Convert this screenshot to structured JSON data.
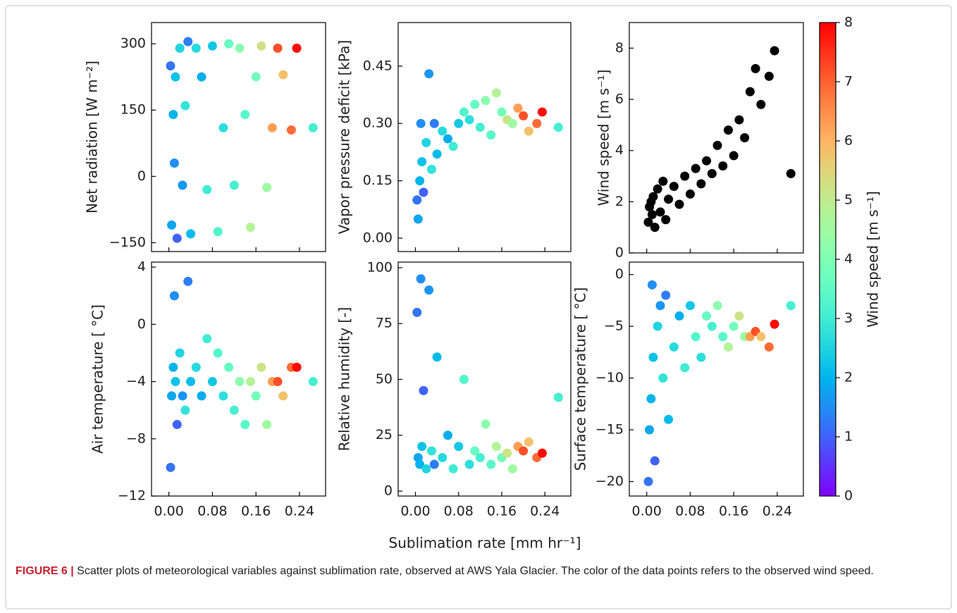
{
  "chart_data": [
    {
      "type": "scatter",
      "ylabel": "Net radiation  [W m⁻²]",
      "xlim": [
        -0.032,
        0.288
      ],
      "ylim": [
        -170,
        348
      ],
      "xticks": [
        0,
        0.08,
        0.16,
        0.24
      ],
      "show_xticklabels": false,
      "yticks": [
        {
          "value": -150,
          "label": "−150"
        },
        0,
        150,
        300
      ],
      "x": [
        0.003,
        0.005,
        0.008,
        0.01,
        0.012,
        0.015,
        0.02,
        0.025,
        0.03,
        0.035,
        0.04,
        0.05,
        0.06,
        0.07,
        0.08,
        0.09,
        0.1,
        0.11,
        0.12,
        0.13,
        0.14,
        0.15,
        0.16,
        0.17,
        0.18,
        0.19,
        0.2,
        0.21,
        0.225,
        0.235,
        0.265
      ],
      "y": [
        250,
        -110,
        140,
        30,
        225,
        -140,
        290,
        -20,
        160,
        305,
        -130,
        290,
        225,
        -30,
        295,
        -125,
        110,
        300,
        -20,
        290,
        140,
        -115,
        225,
        295,
        -25,
        110,
        290,
        230,
        105,
        290,
        110
      ],
      "c": [
        1.2,
        1.8,
        2.0,
        1.5,
        2.2,
        1.0,
        2.5,
        1.6,
        2.8,
        1.3,
        2.1,
        2.6,
        1.9,
        3.0,
        2.3,
        3.3,
        2.7,
        3.6,
        3.1,
        4.2,
        3.4,
        4.8,
        3.8,
        5.2,
        4.5,
        6.3,
        7.2,
        5.8,
        6.9,
        7.9,
        3.1
      ]
    },
    {
      "type": "scatter",
      "ylabel": "Vapor pressure deficit [kPa]",
      "xlim": [
        -0.032,
        0.288
      ],
      "ylim": [
        -0.035,
        0.564
      ],
      "xticks": [
        0,
        0.08,
        0.16,
        0.24
      ],
      "show_xticklabels": false,
      "yticks": [
        {
          "value": 0,
          "label": "0.00"
        },
        0.15,
        {
          "value": 0.3,
          "label": "0.30"
        },
        0.45
      ],
      "x": [
        0.003,
        0.005,
        0.008,
        0.01,
        0.012,
        0.015,
        0.02,
        0.025,
        0.03,
        0.035,
        0.04,
        0.05,
        0.06,
        0.07,
        0.08,
        0.09,
        0.1,
        0.11,
        0.12,
        0.13,
        0.14,
        0.15,
        0.16,
        0.17,
        0.18,
        0.19,
        0.2,
        0.21,
        0.225,
        0.235,
        0.265
      ],
      "y": [
        0.1,
        0.05,
        0.15,
        0.3,
        0.2,
        0.12,
        0.25,
        0.43,
        0.18,
        0.3,
        0.22,
        0.28,
        0.26,
        0.24,
        0.3,
        0.33,
        0.31,
        0.35,
        0.29,
        0.36,
        0.27,
        0.38,
        0.33,
        0.31,
        0.3,
        0.34,
        0.32,
        0.28,
        0.3,
        0.33,
        0.29
      ],
      "c": [
        1.2,
        1.8,
        2.0,
        1.5,
        2.2,
        1.0,
        2.5,
        1.6,
        2.8,
        1.3,
        2.1,
        2.6,
        1.9,
        3.0,
        2.3,
        3.3,
        2.7,
        3.6,
        3.1,
        4.2,
        3.4,
        4.8,
        3.8,
        5.2,
        4.5,
        6.3,
        7.2,
        5.8,
        6.9,
        7.9,
        3.1
      ]
    },
    {
      "type": "scatter",
      "ylabel": "Wind speed  [m s⁻¹]",
      "xlim": [
        -0.032,
        0.288
      ],
      "ylim": [
        0,
        9
      ],
      "xticks": [
        0,
        0.08,
        0.16,
        0.24
      ],
      "show_xticklabels": false,
      "yticks": [
        0,
        2,
        4,
        6,
        8
      ],
      "color": "#000000",
      "x": [
        0.003,
        0.005,
        0.008,
        0.01,
        0.012,
        0.015,
        0.02,
        0.025,
        0.03,
        0.035,
        0.04,
        0.05,
        0.06,
        0.07,
        0.08,
        0.09,
        0.1,
        0.11,
        0.12,
        0.13,
        0.14,
        0.15,
        0.16,
        0.17,
        0.18,
        0.19,
        0.2,
        0.21,
        0.225,
        0.235,
        0.265
      ],
      "y": [
        1.2,
        1.8,
        2.0,
        1.5,
        2.2,
        1.0,
        2.5,
        1.6,
        2.8,
        1.3,
        2.1,
        2.6,
        1.9,
        3.0,
        2.3,
        3.3,
        2.7,
        3.6,
        3.1,
        4.2,
        3.4,
        4.8,
        3.8,
        5.2,
        4.5,
        6.3,
        7.2,
        5.8,
        6.9,
        7.9,
        3.1
      ]
    },
    {
      "type": "scatter",
      "ylabel": "Air temperature  [ °C]",
      "xlim": [
        -0.032,
        0.288
      ],
      "ylim": [
        -12,
        4.35
      ],
      "xticks": [
        {
          "value": 0,
          "label": "0.00"
        },
        0.08,
        0.16,
        0.24
      ],
      "show_xticklabels": true,
      "yticks": [
        {
          "value": -12,
          "label": "−12"
        },
        {
          "value": -8,
          "label": "−8"
        },
        {
          "value": -4,
          "label": "−4"
        },
        0,
        4
      ],
      "x": [
        0.003,
        0.005,
        0.008,
        0.01,
        0.012,
        0.015,
        0.02,
        0.025,
        0.03,
        0.035,
        0.04,
        0.05,
        0.06,
        0.07,
        0.08,
        0.09,
        0.1,
        0.11,
        0.12,
        0.13,
        0.14,
        0.15,
        0.16,
        0.17,
        0.18,
        0.19,
        0.2,
        0.21,
        0.225,
        0.235,
        0.265
      ],
      "y": [
        -10,
        -5,
        -3,
        2,
        -4,
        -7,
        -2,
        -5,
        -6,
        3,
        -4,
        -3,
        -5,
        -1,
        -4,
        -2,
        -5,
        -3,
        -6,
        -4,
        -7,
        -4,
        -5,
        -3,
        -7,
        -4,
        -4,
        -5,
        -3,
        -3,
        -4
      ],
      "c": [
        1.2,
        1.8,
        2.0,
        1.5,
        2.2,
        1.0,
        2.5,
        1.6,
        2.8,
        1.3,
        2.1,
        2.6,
        1.9,
        3.0,
        2.3,
        3.3,
        2.7,
        3.6,
        3.1,
        4.2,
        3.4,
        4.8,
        3.8,
        5.2,
        4.5,
        6.3,
        7.2,
        5.8,
        6.9,
        7.9,
        3.1
      ]
    },
    {
      "type": "scatter",
      "ylabel": "Relative humidity  [-]",
      "xlim": [
        -0.032,
        0.288
      ],
      "ylim": [
        -2.2,
        102.5
      ],
      "xticks": [
        {
          "value": 0,
          "label": "0.00"
        },
        0.08,
        0.16,
        0.24
      ],
      "show_xticklabels": true,
      "yticks": [
        0,
        25,
        50,
        75,
        100
      ],
      "x": [
        0.003,
        0.005,
        0.008,
        0.01,
        0.012,
        0.015,
        0.02,
        0.025,
        0.03,
        0.035,
        0.04,
        0.05,
        0.06,
        0.07,
        0.08,
        0.09,
        0.1,
        0.11,
        0.12,
        0.13,
        0.14,
        0.15,
        0.16,
        0.17,
        0.18,
        0.19,
        0.2,
        0.21,
        0.225,
        0.235,
        0.265
      ],
      "y": [
        80,
        15,
        12,
        95,
        20,
        45,
        10,
        90,
        18,
        12,
        60,
        15,
        25,
        10,
        20,
        50,
        12,
        18,
        15,
        30,
        12,
        20,
        15,
        17,
        10,
        20,
        18,
        22,
        15,
        17,
        42
      ],
      "c": [
        1.2,
        1.8,
        2.0,
        1.5,
        2.2,
        1.0,
        2.5,
        1.6,
        2.8,
        1.3,
        2.1,
        2.6,
        1.9,
        3.0,
        2.3,
        3.3,
        2.7,
        3.6,
        3.1,
        4.2,
        3.4,
        4.8,
        3.8,
        5.2,
        4.5,
        6.3,
        7.2,
        5.8,
        6.9,
        7.9,
        3.1
      ]
    },
    {
      "type": "scatter",
      "ylabel": "Surface temperature  [ °C]",
      "xlim": [
        -0.032,
        0.288
      ],
      "ylim": [
        -21.4,
        1.2
      ],
      "xticks": [
        {
          "value": 0,
          "label": "0.00"
        },
        0.08,
        0.16,
        0.24
      ],
      "show_xticklabels": true,
      "yticks": [
        {
          "value": -20,
          "label": "−20"
        },
        {
          "value": -15,
          "label": "−15"
        },
        {
          "value": -10,
          "label": "−10"
        },
        {
          "value": -5,
          "label": "−5"
        },
        0
      ],
      "x": [
        0.003,
        0.005,
        0.008,
        0.01,
        0.012,
        0.015,
        0.02,
        0.025,
        0.03,
        0.035,
        0.04,
        0.05,
        0.06,
        0.07,
        0.08,
        0.09,
        0.1,
        0.11,
        0.12,
        0.13,
        0.14,
        0.15,
        0.16,
        0.17,
        0.18,
        0.19,
        0.2,
        0.21,
        0.225,
        0.235,
        0.265
      ],
      "y": [
        -20,
        -15,
        -12,
        -1,
        -8,
        -18,
        -5,
        -3,
        -10,
        -2,
        -14,
        -7,
        -4,
        -9,
        -3,
        -6,
        -8,
        -4,
        -5,
        -3,
        -6,
        -7,
        -5,
        -4,
        -6,
        -6,
        -5.5,
        -6,
        -7,
        -4.8,
        -3
      ],
      "c": [
        1.2,
        1.8,
        2.0,
        1.5,
        2.2,
        1.0,
        2.5,
        1.6,
        2.8,
        1.3,
        2.1,
        2.6,
        1.9,
        3.0,
        2.3,
        3.3,
        2.7,
        3.6,
        3.1,
        4.2,
        3.4,
        4.8,
        3.8,
        5.2,
        4.5,
        6.3,
        7.2,
        5.8,
        6.9,
        7.9,
        3.1
      ]
    }
  ],
  "figure_xlabel": "Sublimation rate [mm hr⁻¹]",
  "colorbar": {
    "label": "Wind speed  [m s⁻¹]",
    "cmap": "rainbow",
    "lim": [
      0,
      8
    ],
    "ticks": [
      0,
      1,
      2,
      3,
      4,
      5,
      6,
      7,
      8
    ]
  },
  "caption": {
    "label": "FIGURE 6 |",
    "text": "Scatter plots of meteorological variables against sublimation rate, observed at AWS Yala Glacier. The color of the data points refers to the observed wind speed."
  }
}
